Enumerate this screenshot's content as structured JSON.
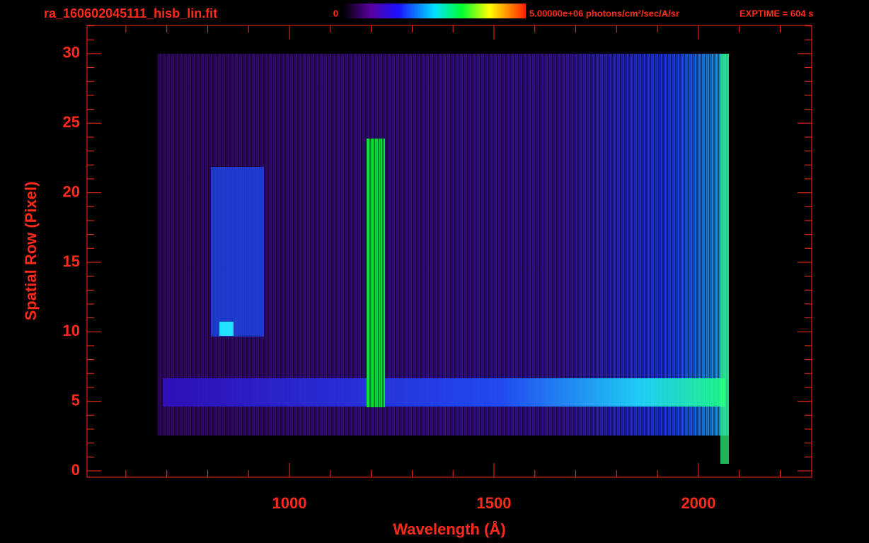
{
  "chart_data": {
    "type": "heatmap",
    "title": "ra_160602045111_hisb_lin.fit",
    "colorbar_min_label": "0",
    "colorbar_max_label": "5.00000e+06 photons/cm²/sec/A/sr",
    "exposure_label": "EXPTIME = 604 s",
    "xlabel": "Wavelength (Å)",
    "ylabel": "Spatial Row (Pixel)",
    "xlim": [
      505,
      2277
    ],
    "xticks": [
      1000,
      1500,
      2000
    ],
    "xminorticks": [
      600,
      700,
      800,
      900,
      1100,
      1200,
      1300,
      1400,
      1600,
      1700,
      1800,
      1900,
      2100,
      2200
    ],
    "ylim": [
      -0.46,
      32.03
    ],
    "yticks": [
      0,
      5,
      10,
      15,
      20,
      25,
      30
    ],
    "yminorticks": [
      1,
      2,
      3,
      4,
      6,
      7,
      8,
      9,
      11,
      12,
      13,
      14,
      16,
      17,
      18,
      19,
      21,
      22,
      23,
      24,
      26,
      27,
      28,
      29,
      31,
      32
    ],
    "axis_color": "#ff2a1a"
  }
}
